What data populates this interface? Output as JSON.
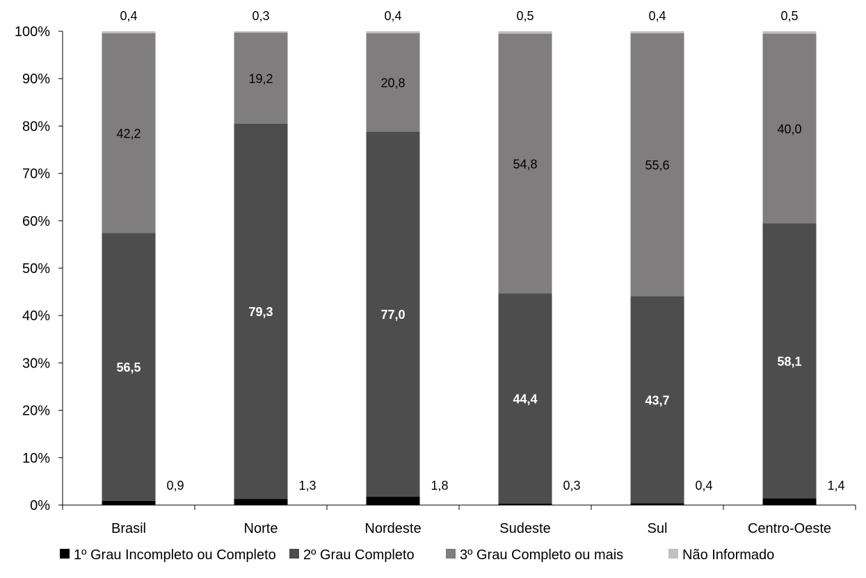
{
  "chart_data": {
    "type": "bar",
    "stacked": true,
    "normalized": true,
    "categories": [
      "Brasil",
      "Norte",
      "Nordeste",
      "Sudeste",
      "Sul",
      "Centro-Oeste"
    ],
    "series": [
      {
        "name": "1º Grau Incompleto ou Completo",
        "color": "#000000",
        "values": [
          0.9,
          1.3,
          1.8,
          0.3,
          0.4,
          1.4
        ],
        "labels": [
          "0,9",
          "1,3",
          "1,8",
          "0,3",
          "0,4",
          "1,4"
        ]
      },
      {
        "name": "2º Grau Completo",
        "color": "#4d4d4d",
        "values": [
          56.5,
          79.3,
          77.0,
          44.4,
          43.7,
          58.1
        ],
        "labels": [
          "56,5",
          "79,3",
          "77,0",
          "44,4",
          "43,7",
          "58,1"
        ]
      },
      {
        "name": "3º Grau Completo ou mais",
        "color": "#7f7d7e",
        "values": [
          42.2,
          19.2,
          20.8,
          54.8,
          55.6,
          40.0
        ],
        "labels": [
          "42,2",
          "19,2",
          "20,8",
          "54,8",
          "55,6",
          "40,0"
        ]
      },
      {
        "name": "Não Informado",
        "color": "#c0c0c0",
        "values": [
          0.4,
          0.3,
          0.4,
          0.5,
          0.4,
          0.5
        ],
        "labels": [
          "0,4",
          "0,3",
          "0,4",
          "0,5",
          "0,4",
          "0,5"
        ]
      }
    ],
    "yticks": [
      "0%",
      "10%",
      "20%",
      "30%",
      "40%",
      "50%",
      "60%",
      "70%",
      "80%",
      "90%",
      "100%"
    ],
    "ylim": [
      0,
      100
    ],
    "grid": false,
    "legend_position": "bottom"
  }
}
